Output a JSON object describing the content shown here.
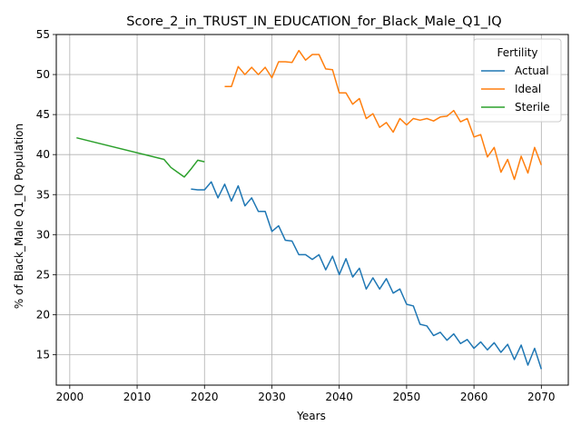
{
  "chart_data": {
    "type": "line",
    "title": "Score_2_in_TRUST_IN_EDUCATION_for_Black_Male_Q1_IQ",
    "xlabel": "Years",
    "ylabel": "% of Black_Male Q1_IQ Population",
    "xlim": [
      1998,
      2074
    ],
    "ylim": [
      11.2,
      55
    ],
    "xticks": [
      2000,
      2010,
      2020,
      2030,
      2040,
      2050,
      2060,
      2070
    ],
    "yticks": [
      15,
      20,
      25,
      30,
      35,
      40,
      45,
      50,
      55
    ],
    "grid": true,
    "legend": {
      "title": "Fertility",
      "position": "top-right"
    },
    "series": [
      {
        "name": "Actual",
        "color": "#1f77b4",
        "x": [
          2018,
          2019,
          2020,
          2021,
          2022,
          2023,
          2024,
          2025,
          2026,
          2027,
          2028,
          2029,
          2030,
          2031,
          2032,
          2033,
          2034,
          2035,
          2036,
          2037,
          2038,
          2039,
          2040,
          2041,
          2042,
          2043,
          2044,
          2045,
          2046,
          2047,
          2048,
          2049,
          2050,
          2051,
          2052,
          2053,
          2054,
          2055,
          2056,
          2057,
          2058,
          2059,
          2060,
          2061,
          2062,
          2063,
          2064,
          2065,
          2066,
          2067,
          2068,
          2069,
          2070
        ],
        "y": [
          35.7,
          35.6,
          35.6,
          36.6,
          34.6,
          36.3,
          34.2,
          36.1,
          33.6,
          34.6,
          32.9,
          32.9,
          30.4,
          31.1,
          29.3,
          29.2,
          27.5,
          27.5,
          26.9,
          27.5,
          25.6,
          27.3,
          25.0,
          27.0,
          24.7,
          25.8,
          23.2,
          24.6,
          23.2,
          24.5,
          22.7,
          23.2,
          21.3,
          21.1,
          18.8,
          18.6,
          17.4,
          17.8,
          16.8,
          17.6,
          16.4,
          16.9,
          15.8,
          16.6,
          15.6,
          16.5,
          15.3,
          16.3,
          14.4,
          16.2,
          13.7,
          15.8,
          13.2
        ]
      },
      {
        "name": "Ideal",
        "color": "#ff7f0e",
        "x": [
          2023,
          2024,
          2025,
          2026,
          2027,
          2028,
          2029,
          2030,
          2031,
          2032,
          2033,
          2034,
          2035,
          2036,
          2037,
          2038,
          2039,
          2040,
          2041,
          2042,
          2043,
          2044,
          2045,
          2046,
          2047,
          2048,
          2049,
          2050,
          2051,
          2052,
          2053,
          2054,
          2055,
          2056,
          2057,
          2058,
          2059,
          2060,
          2061,
          2062,
          2063,
          2064,
          2065,
          2066,
          2067,
          2068,
          2069,
          2070
        ],
        "y": [
          48.5,
          48.5,
          51.0,
          50.0,
          50.9,
          50.0,
          50.9,
          49.6,
          51.6,
          51.6,
          51.5,
          53.0,
          51.8,
          52.5,
          52.5,
          50.7,
          50.6,
          47.7,
          47.7,
          46.3,
          47.0,
          44.5,
          45.1,
          43.4,
          44.0,
          42.8,
          44.5,
          43.7,
          44.5,
          44.3,
          44.5,
          44.2,
          44.7,
          44.8,
          45.5,
          44.1,
          44.5,
          42.2,
          42.5,
          39.7,
          40.9,
          37.8,
          39.4,
          36.9,
          39.8,
          37.7,
          40.9,
          38.7
        ]
      },
      {
        "name": "Sterile",
        "color": "#2ca02c",
        "x": [
          2001,
          2014,
          2015,
          2016,
          2017,
          2018,
          2019,
          2020
        ],
        "y": [
          42.1,
          39.4,
          38.4,
          37.8,
          37.2,
          38.2,
          39.3,
          39.1
        ]
      }
    ]
  }
}
